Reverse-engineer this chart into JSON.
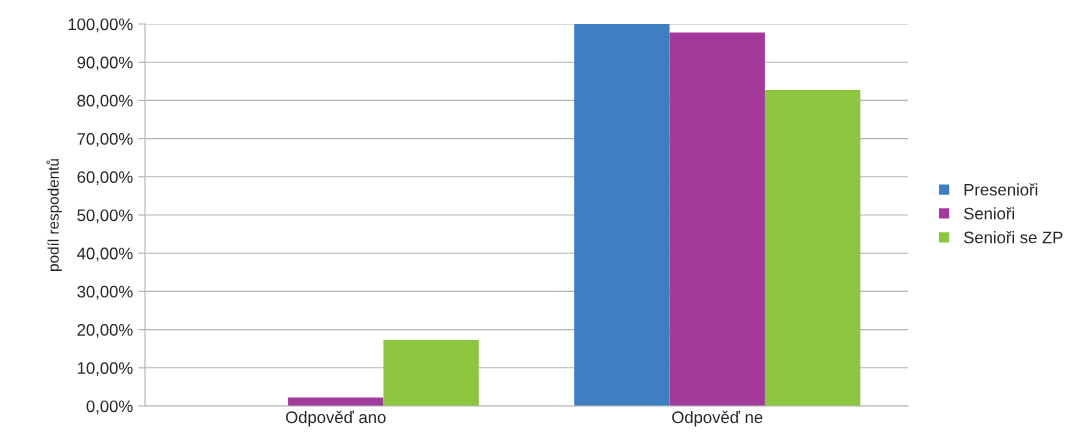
{
  "chart_data": {
    "type": "bar",
    "ylabel": "podíl respodentů",
    "categories": [
      "Odpověď ano",
      "Odpověď ne"
    ],
    "series": [
      {
        "name": "Presenioři",
        "color": "#3e7fc1",
        "values": [
          0,
          100
        ]
      },
      {
        "name": "Senioři",
        "color": "#a3399b",
        "values": [
          2.2,
          97.8
        ]
      },
      {
        "name": "Senioři se ZP",
        "color": "#8cc63e",
        "values": [
          17.3,
          82.7
        ]
      }
    ],
    "ylim": [
      0,
      100
    ],
    "yticks": [
      {
        "value": 0,
        "label": "0,00%"
      },
      {
        "value": 10,
        "label": "10,00%"
      },
      {
        "value": 20,
        "label": "20,00%"
      },
      {
        "value": 30,
        "label": "30,00%"
      },
      {
        "value": 40,
        "label": "40,00%"
      },
      {
        "value": 50,
        "label": "50,00%"
      },
      {
        "value": 60,
        "label": "60,00%"
      },
      {
        "value": 70,
        "label": "70,00%"
      },
      {
        "value": 80,
        "label": "80,00%"
      },
      {
        "value": 90,
        "label": "90,00%"
      },
      {
        "value": 100,
        "label": "100,00%"
      }
    ],
    "grid": "y",
    "legend": "right"
  }
}
